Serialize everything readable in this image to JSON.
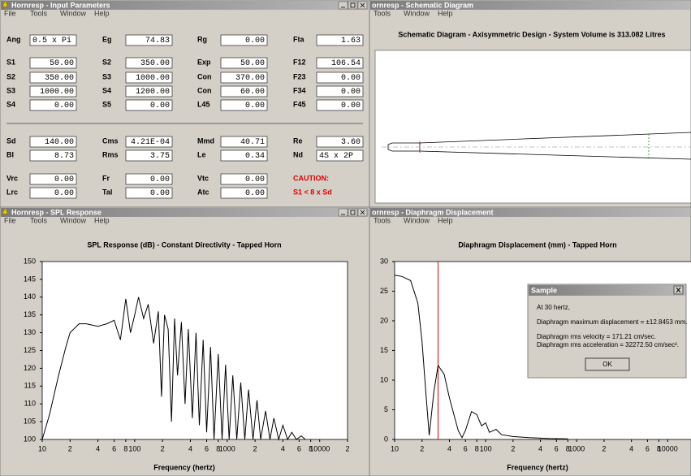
{
  "windows": [
    {
      "title": "Hornresp - Input Parameters",
      "menu": [
        "File",
        "Tools",
        "Window",
        "Help"
      ]
    },
    {
      "title": "ornresp - Schematic Diagram",
      "menu": [
        "Tools",
        "Window",
        "Help"
      ]
    },
    {
      "title": "Hornresp - SPL Response",
      "menu": [
        "File",
        "Tools",
        "Window",
        "Help"
      ]
    },
    {
      "title": "ornresp - Diaphragm Displacement",
      "menu": [
        "Tools",
        "Window",
        "Help"
      ]
    }
  ],
  "input_parameters": {
    "rows": [
      [
        {
          "label": "Ang",
          "value": "0.5 x Pi"
        },
        {
          "label": "Eg",
          "value": "74.83"
        },
        {
          "label": "Rg",
          "value": "0.00"
        },
        {
          "label": "Fta",
          "value": "1.63"
        }
      ],
      [
        {
          "label": "S1",
          "value": "50.00"
        },
        {
          "label": "S2",
          "value": "350.00"
        },
        {
          "label": "Exp",
          "value": "50.00"
        },
        {
          "label": "F12",
          "value": "106.54"
        }
      ],
      [
        {
          "label": "S2",
          "value": "350.00"
        },
        {
          "label": "S3",
          "value": "1000.00"
        },
        {
          "label": "Con",
          "value": "370.00"
        },
        {
          "label": "F23",
          "value": "0.00"
        }
      ],
      [
        {
          "label": "S3",
          "value": "1000.00"
        },
        {
          "label": "S4",
          "value": "1200.00"
        },
        {
          "label": "Con",
          "value": "60.00"
        },
        {
          "label": "F34",
          "value": "0.00"
        }
      ],
      [
        {
          "label": "S4",
          "value": "0.00"
        },
        {
          "label": "S5",
          "value": "0.00"
        },
        {
          "label": "L45",
          "value": "0.00"
        },
        {
          "label": "F45",
          "value": "0.00"
        }
      ],
      [
        {
          "label": "Sd",
          "value": "140.00"
        },
        {
          "label": "Cms",
          "value": "4.21E-04"
        },
        {
          "label": "Mmd",
          "value": "40.71"
        },
        {
          "label": "Re",
          "value": "3.60"
        }
      ],
      [
        {
          "label": "Bl",
          "value": "8.73"
        },
        {
          "label": "Rms",
          "value": "3.75"
        },
        {
          "label": "Le",
          "value": "0.34"
        },
        {
          "label": "Nd",
          "value": "4S x 2P"
        }
      ],
      [
        {
          "label": "Vrc",
          "value": "0.00"
        },
        {
          "label": "Fr",
          "value": "0.00"
        },
        {
          "label": "Vtc",
          "value": "0.00"
        }
      ],
      [
        {
          "label": "Lrc",
          "value": "0.00"
        },
        {
          "label": "Tal",
          "value": "0.00"
        },
        {
          "label": "Atc",
          "value": "0.00"
        }
      ]
    ],
    "warning": [
      "CAUTION:",
      "S1 < 8 x Sd"
    ]
  },
  "schematic": {
    "heading": "Schematic Diagram - Axisymmetric Design - System Volume is 313.082 Litres"
  },
  "dialog": {
    "title": "Sample",
    "lines": [
      "At 30 hertz,",
      "Diaphragm maximum displacement = ±12.8453 mm.",
      "Diaphragm rms velocity = 171.21 cm/sec.",
      "Diaphragm rms acceleration = 32272.50 cm/sec²."
    ],
    "button": "OK"
  },
  "chart_data": [
    {
      "type": "line",
      "title": "SPL Response (dB) - Constant Directivity - Tapped Horn",
      "xlabel": "Frequency (hertz)",
      "log_x": true,
      "color": "#000000",
      "x": [
        10,
        12,
        15,
        18,
        20,
        25,
        30,
        40,
        50,
        60,
        70,
        80,
        90,
        100,
        110,
        125,
        140,
        160,
        180,
        195,
        210,
        230,
        250,
        270,
        290,
        320,
        350,
        380,
        420,
        460,
        500,
        550,
        600,
        660,
        720,
        800,
        880,
        960,
        1050,
        1150,
        1270,
        1400,
        1550,
        1700,
        1900,
        2100,
        2300,
        2600,
        2900,
        3200,
        3600,
        4000,
        4500,
        5000,
        5600,
        6300,
        7000
      ],
      "values": [
        100,
        107,
        118,
        126,
        130,
        132.5,
        132.5,
        131.8,
        132.5,
        133.5,
        128,
        139.5,
        130,
        135,
        140,
        134,
        138,
        127,
        136,
        112,
        135,
        131,
        105,
        134,
        118,
        133,
        110,
        131,
        106,
        130,
        104,
        128,
        102,
        126,
        100,
        124,
        100,
        121,
        100,
        118,
        100,
        116,
        100,
        114,
        100,
        111,
        100,
        108,
        100,
        106,
        100,
        104,
        100,
        102,
        100,
        101,
        100
      ],
      "xlim": [
        10,
        20000
      ],
      "xticks": [
        10,
        {
          "value": 20,
          "label": "2"
        },
        {
          "value": 40,
          "label": "4"
        },
        {
          "value": 60,
          "label": "6"
        },
        {
          "value": 80,
          "label": "8"
        },
        100,
        {
          "value": 200,
          "label": "2"
        },
        {
          "value": 400,
          "label": "4"
        },
        {
          "value": 600,
          "label": "6"
        },
        {
          "value": 800,
          "label": "8"
        },
        1000,
        {
          "value": 2000,
          "label": "2"
        },
        {
          "value": 4000,
          "label": "4"
        },
        {
          "value": 6000,
          "label": "6"
        },
        {
          "value": 8000,
          "label": "8"
        },
        10000,
        {
          "value": 20000,
          "label": "2"
        }
      ],
      "ylim": [
        100,
        150
      ],
      "yticks": [
        100,
        105,
        110,
        115,
        120,
        125,
        130,
        135,
        140,
        145,
        150
      ]
    },
    {
      "type": "line",
      "title": "Diaphragm Displacement (mm) - Tapped Horn",
      "xlabel": "Frequency (hertz)",
      "log_x": true,
      "color": "#000000",
      "marker_x": 30,
      "marker_color": "#d00000",
      "x": [
        10,
        12,
        15,
        18,
        20,
        22,
        24,
        27,
        30,
        35,
        40,
        50,
        55,
        60,
        70,
        80,
        90,
        100,
        110,
        130,
        150,
        200,
        300,
        500,
        800
      ],
      "values": [
        27.7,
        27.5,
        26.8,
        23,
        16.6,
        8,
        0.7,
        8,
        12.5,
        11,
        7,
        1.5,
        0.3,
        1.5,
        4.7,
        4.2,
        2.3,
        2.8,
        1.2,
        1.7,
        0.8,
        0.5,
        0.3,
        0.15,
        0.1
      ],
      "xlim": [
        10,
        20000
      ],
      "xticks": [
        10,
        {
          "value": 20,
          "label": "2"
        },
        {
          "value": 40,
          "label": "4"
        },
        {
          "value": 60,
          "label": "6"
        },
        {
          "value": 80,
          "label": "8"
        },
        100,
        {
          "value": 200,
          "label": "2"
        },
        {
          "value": 400,
          "label": "4"
        },
        {
          "value": 600,
          "label": "6"
        },
        {
          "value": 800,
          "label": "8"
        },
        1000,
        {
          "value": 2000,
          "label": "2"
        },
        {
          "value": 4000,
          "label": "4"
        },
        {
          "value": 6000,
          "label": "6"
        },
        {
          "value": 8000,
          "label": "8"
        },
        10000,
        {
          "value": 20000,
          "label": "2"
        }
      ],
      "ylim": [
        0,
        30
      ],
      "yticks": [
        0,
        5,
        10,
        15,
        20,
        25,
        30
      ]
    }
  ]
}
